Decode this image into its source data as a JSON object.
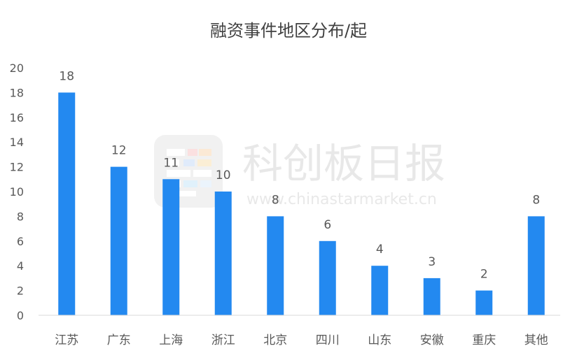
{
  "chart_data": {
    "type": "bar",
    "title": "融资事件地区分布/起",
    "categories": [
      "江苏",
      "广东",
      "上海",
      "浙江",
      "北京",
      "四川",
      "山东",
      "安徽",
      "重庆",
      "其他"
    ],
    "values": [
      18,
      12,
      11,
      10,
      8,
      6,
      4,
      3,
      2,
      8
    ],
    "ylim": [
      0,
      20
    ],
    "yticks": [
      0,
      2,
      4,
      6,
      8,
      10,
      12,
      14,
      16,
      18,
      20
    ],
    "grid": false,
    "legend": "none",
    "bar_color": "#2389f0",
    "text_color": "#595959",
    "axis_color": "#d9d9d9"
  },
  "watermark": {
    "brand": "科创板日报",
    "url": "www.chinastarmarket.cn"
  }
}
